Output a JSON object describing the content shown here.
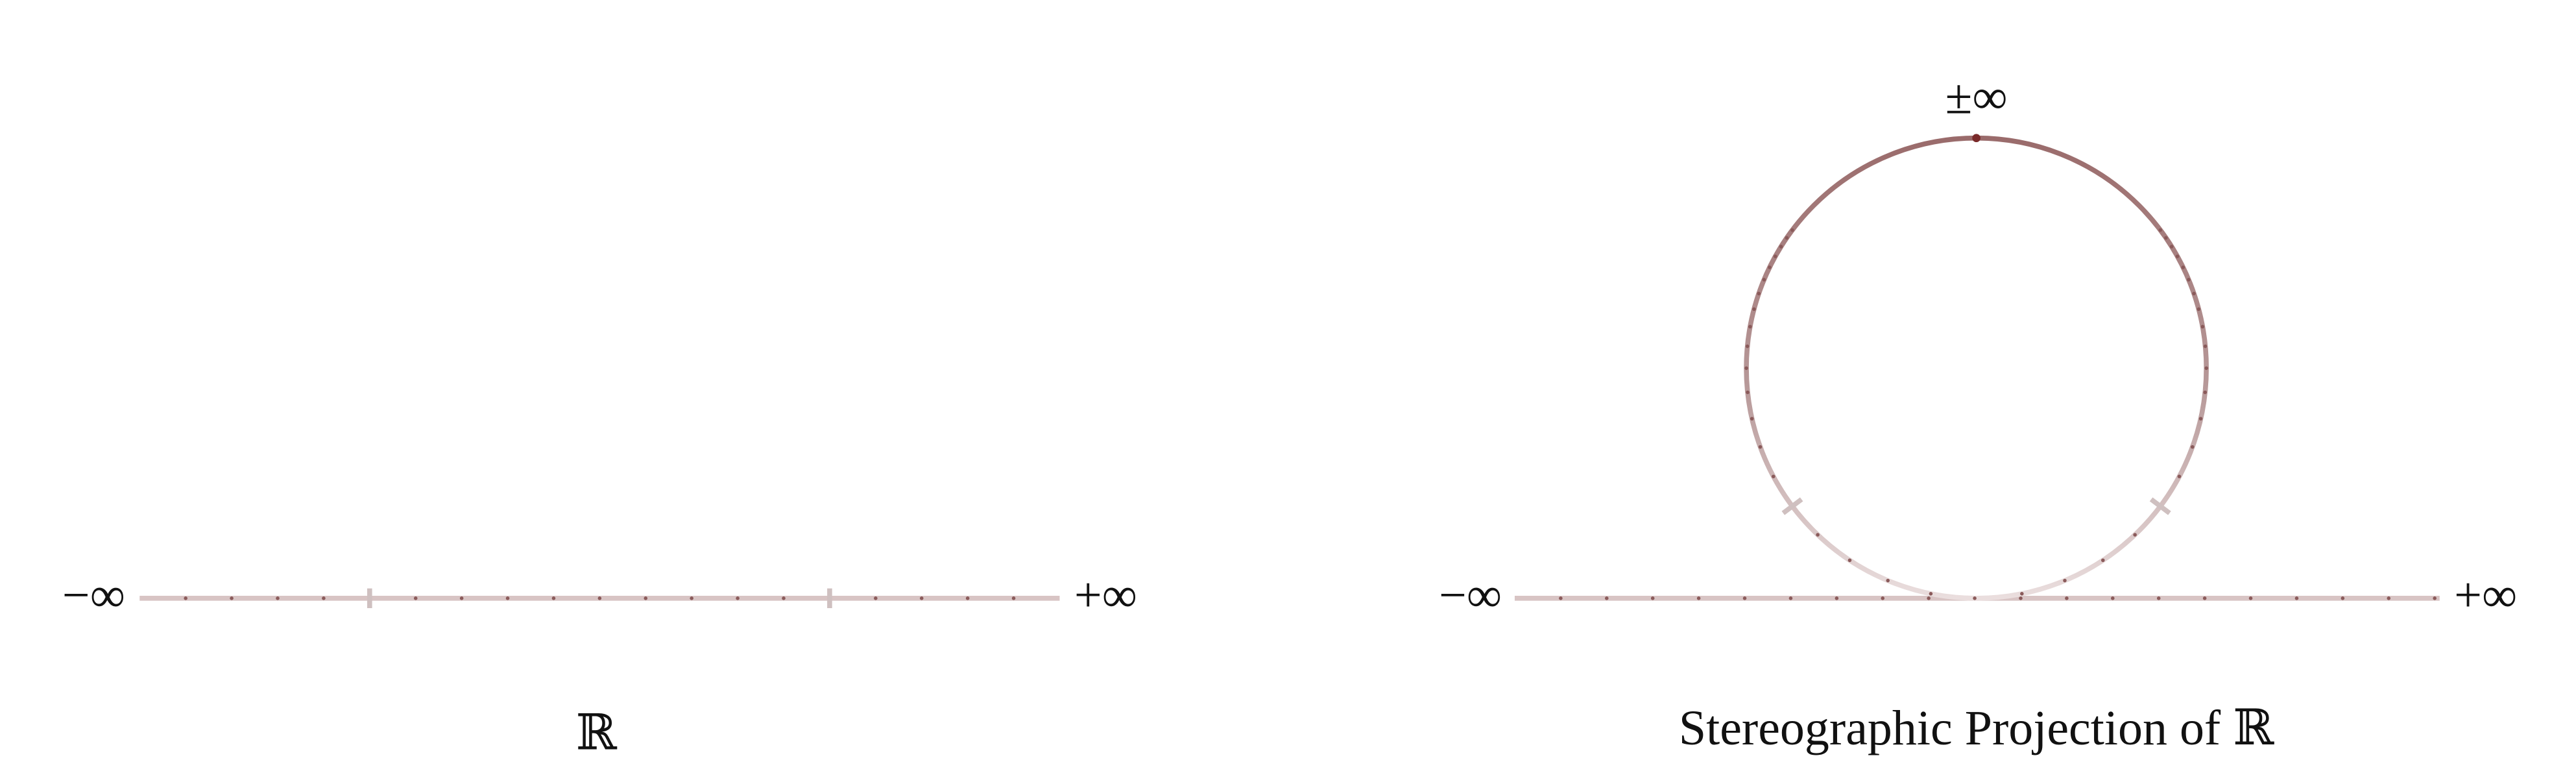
{
  "panels": [
    {
      "left_label": "−∞",
      "right_label": "+∞",
      "caption": "ℝ"
    },
    {
      "left_label": "−∞",
      "right_label": "+∞",
      "top_label": "±∞",
      "caption": "Stereographic Projection of ℝ"
    }
  ]
}
